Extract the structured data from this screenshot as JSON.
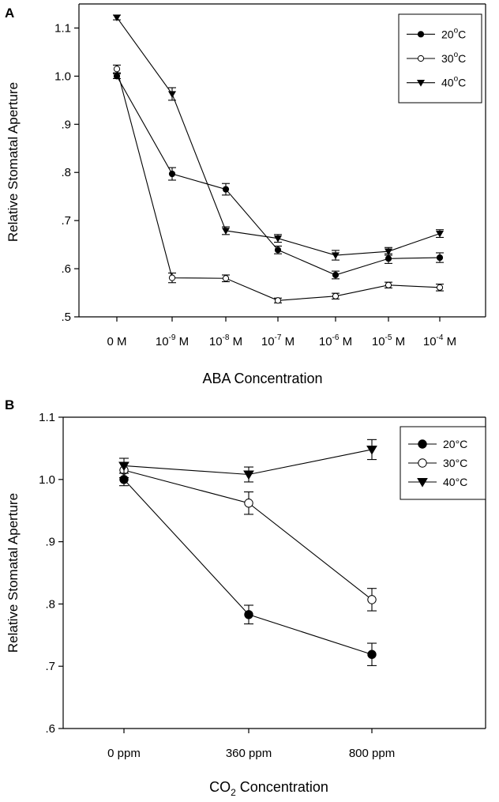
{
  "chart_data": [
    {
      "panel_label": "A",
      "type": "line",
      "ylabel": "Relative Stomatal Aperture",
      "xlabel": "ABA Concentration",
      "categories": [
        {
          "base": "0 M",
          "exp": "",
          "unit": ""
        },
        {
          "base": "10",
          "exp": "-9",
          "unit": " M"
        },
        {
          "base": "10",
          "exp": "-8",
          "unit": " M"
        },
        {
          "base": "10",
          "exp": "-7",
          "unit": " M"
        },
        {
          "base": "10",
          "exp": "-6",
          "unit": " M"
        },
        {
          "base": "10",
          "exp": "-5",
          "unit": " M"
        },
        {
          "base": "10",
          "exp": "-4",
          "unit": " M"
        }
      ],
      "ylim": [
        0.5,
        1.15
      ],
      "yticks": [
        0.5,
        0.6,
        0.7,
        0.8,
        0.9,
        1.0,
        1.1
      ],
      "ytick_labels": [
        ".5",
        ".6",
        ".7",
        ".8",
        ".9",
        "1.0",
        "1.1"
      ],
      "series": [
        {
          "name_base": "20",
          "name_exp": "o",
          "name_unit": "C",
          "marker": "filled-circle",
          "values": [
            1.0,
            0.797,
            0.765,
            0.639,
            0.587,
            0.621,
            0.623
          ],
          "errors": [
            0.005,
            0.013,
            0.012,
            0.008,
            0.008,
            0.01,
            0.01
          ]
        },
        {
          "name_base": "30",
          "name_exp": "o",
          "name_unit": "C",
          "marker": "open-circle",
          "values": [
            1.015,
            0.581,
            0.58,
            0.534,
            0.543,
            0.566,
            0.561
          ],
          "errors": [
            0.008,
            0.01,
            0.007,
            0.005,
            0.006,
            0.006,
            0.007
          ]
        },
        {
          "name_base": "40",
          "name_exp": "o",
          "name_unit": "C",
          "marker": "filled-triangle-down",
          "values": [
            1.122,
            0.963,
            0.679,
            0.663,
            0.628,
            0.636,
            0.673
          ],
          "errors": [
            0.005,
            0.013,
            0.008,
            0.008,
            0.01,
            0.008,
            0.008
          ]
        }
      ]
    },
    {
      "panel_label": "B",
      "type": "line",
      "ylabel": "Relative Stomatal Aperture",
      "xlabel_base": "CO",
      "xlabel_sub": "2",
      "xlabel_rest": " Concentration",
      "categories": [
        {
          "base": "0 ppm",
          "exp": "",
          "unit": ""
        },
        {
          "base": "360 ppm",
          "exp": "",
          "unit": ""
        },
        {
          "base": "800 ppm",
          "exp": "",
          "unit": ""
        }
      ],
      "ylim": [
        0.6,
        1.1
      ],
      "yticks": [
        0.6,
        0.7,
        0.8,
        0.9,
        1.0,
        1.1
      ],
      "ytick_labels": [
        ".6",
        ".7",
        ".8",
        ".9",
        "1.0",
        "1.1"
      ],
      "series": [
        {
          "name_base": "20",
          "name_exp": "",
          "name_unit": "°C",
          "marker": "filled-circle",
          "values": [
            1.0,
            0.783,
            0.719
          ],
          "errors": [
            0.01,
            0.015,
            0.018
          ]
        },
        {
          "name_base": "30",
          "name_exp": "",
          "name_unit": "°C",
          "marker": "open-circle",
          "values": [
            1.015,
            0.962,
            0.807
          ],
          "errors": [
            0.012,
            0.018,
            0.018
          ]
        },
        {
          "name_base": "40",
          "name_exp": "",
          "name_unit": "°C",
          "marker": "filled-triangle-down",
          "values": [
            1.022,
            1.008,
            1.048
          ],
          "errors": [
            0.012,
            0.012,
            0.016
          ]
        }
      ]
    }
  ]
}
